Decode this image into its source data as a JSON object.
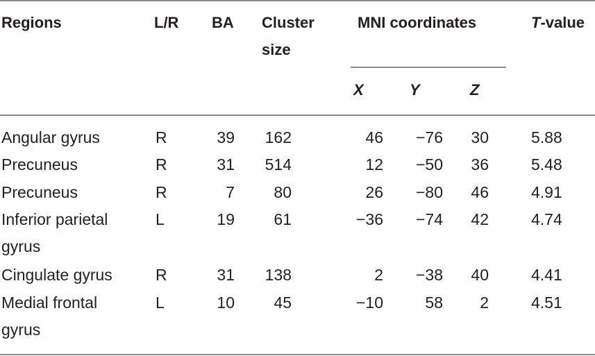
{
  "table": {
    "headers": {
      "regions": "Regions",
      "lr": "L/R",
      "ba": "BA",
      "cluster_line1": "Cluster",
      "cluster_line2": "size",
      "mni": "MNI coordinates",
      "x": "X",
      "y": "Y",
      "z": "Z",
      "t_italic": "T",
      "t_rest": "-value"
    },
    "rows": [
      {
        "region": "Angular gyrus",
        "region2": "",
        "lr": "R",
        "ba": "39",
        "cluster": "162",
        "x": "46",
        "y": "−76",
        "z": "30",
        "t": "5.88"
      },
      {
        "region": "Precuneus",
        "region2": "",
        "lr": "R",
        "ba": "31",
        "cluster": "514",
        "x": "12",
        "y": "−50",
        "z": "36",
        "t": "5.48"
      },
      {
        "region": "Precuneus",
        "region2": "",
        "lr": "R",
        "ba": "7",
        "cluster": "80",
        "x": "26",
        "y": "−80",
        "z": "46",
        "t": "4.91"
      },
      {
        "region": "Inferior parietal",
        "region2": "gyrus",
        "lr": "L",
        "ba": "19",
        "cluster": "61",
        "x": "−36",
        "y": "−74",
        "z": "42",
        "t": "4.74"
      },
      {
        "region": "Cingulate gyrus",
        "region2": "",
        "lr": "R",
        "ba": "31",
        "cluster": "138",
        "x": "2",
        "y": "−38",
        "z": "40",
        "t": "4.41"
      },
      {
        "region": "Medial frontal",
        "region2": "gyrus",
        "lr": "L",
        "ba": "10",
        "cluster": "45",
        "x": "−10",
        "y": "58",
        "z": "2",
        "t": "4.51"
      }
    ]
  }
}
